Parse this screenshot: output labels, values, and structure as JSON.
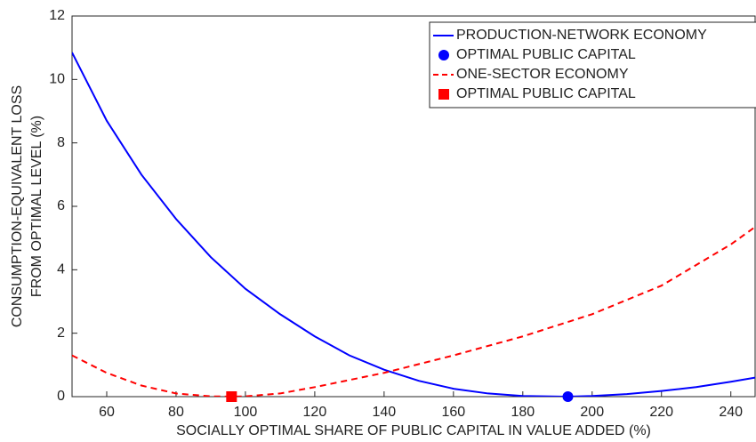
{
  "chart_data": {
    "type": "line",
    "xlabel": "SOCIALLY OPTIMAL SHARE OF PUBLIC CAPITAL IN VALUE ADDED (%)",
    "ylabel": [
      "CONSUMPTION-EQUIVALENT LOSS",
      "FROM OPTIMAL LEVEL (%)"
    ],
    "xlim": [
      50,
      247
    ],
    "ylim": [
      0,
      12
    ],
    "xticks": [
      60,
      80,
      100,
      120,
      140,
      160,
      180,
      200,
      220,
      240
    ],
    "yticks": [
      0,
      2,
      4,
      6,
      8,
      10,
      12
    ],
    "grid": false,
    "legend": "upper right",
    "series": [
      {
        "name": "PRODUCTION-NETWORK ECONOMY",
        "color": "#0000ff",
        "style": "solid",
        "x": [
          50,
          60,
          70,
          80,
          90,
          100,
          110,
          120,
          130,
          140,
          150,
          160,
          170,
          180,
          193,
          200,
          210,
          220,
          230,
          240,
          247
        ],
        "values": [
          10.85,
          8.7,
          7.0,
          5.6,
          4.4,
          3.4,
          2.6,
          1.9,
          1.3,
          0.85,
          0.5,
          0.25,
          0.1,
          0.02,
          0,
          0.02,
          0.08,
          0.18,
          0.3,
          0.47,
          0.6
        ]
      },
      {
        "name": "OPTIMAL PUBLIC CAPITAL",
        "color": "#0000ff",
        "marker": "circle",
        "x": [
          193
        ],
        "values": [
          0
        ]
      },
      {
        "name": "ONE-SECTOR ECONOMY",
        "color": "#ff0000",
        "style": "dashed",
        "x": [
          50,
          60,
          70,
          80,
          90,
          96,
          100,
          110,
          120,
          140,
          160,
          180,
          200,
          220,
          240,
          247
        ],
        "values": [
          1.3,
          0.75,
          0.35,
          0.1,
          0.01,
          0,
          0.01,
          0.1,
          0.3,
          0.75,
          1.3,
          1.9,
          2.6,
          3.5,
          4.8,
          5.35
        ]
      },
      {
        "name": "OPTIMAL PUBLIC CAPITAL",
        "color": "#ff0000",
        "marker": "square",
        "x": [
          96
        ],
        "values": [
          0
        ]
      }
    ]
  }
}
